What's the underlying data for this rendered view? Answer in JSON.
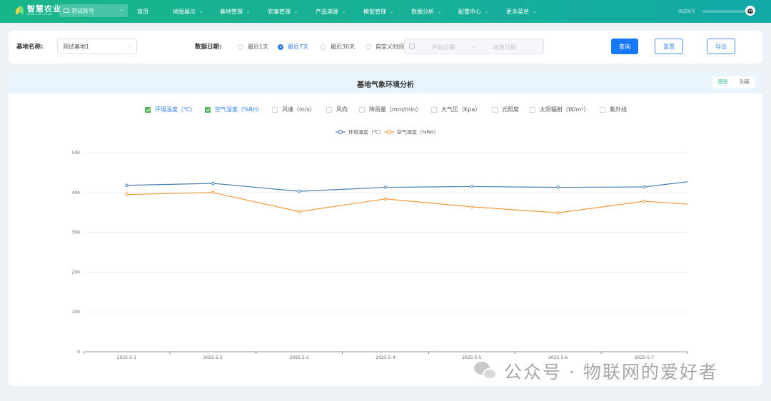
{
  "brand": {
    "name_cn": "智慧农业",
    "name_en": "SMART AGRICULTURE"
  },
  "account": {
    "label": "测试账号"
  },
  "nav": [
    "首页",
    "地图展示",
    "基地管理",
    "农事管理",
    "产品溯源",
    "模型管理",
    "数据分析",
    "配置中心",
    "更多菜单"
  ],
  "nav_has_dropdown": [
    false,
    true,
    true,
    true,
    true,
    true,
    true,
    true,
    true
  ],
  "topright": {
    "user": "测试账号"
  },
  "filter": {
    "base_label": "基地名称:",
    "base_value": "测试基地1",
    "date_label": "数据日期:",
    "ranges": [
      "最近1天",
      "最近7天",
      "最近30天",
      "自定义时间"
    ],
    "selected_range": "最近7天",
    "start_placeholder": "开始日期",
    "range_separator": "—",
    "end_placeholder": "结束日期",
    "query": "查询",
    "reset": "重置",
    "export": "导出"
  },
  "panel": {
    "title": "基地气象环境分析",
    "views": [
      "图形",
      "列表"
    ],
    "active_view": "图形",
    "metrics": [
      {
        "label": "环境温度（℃）",
        "checked": true
      },
      {
        "label": "空气湿度（%RH）",
        "checked": true
      },
      {
        "label": "风速（m/s）",
        "checked": false
      },
      {
        "label": "风向",
        "checked": false
      },
      {
        "label": "降雨量（mm/min）",
        "checked": false
      },
      {
        "label": "大气压（Kpa）",
        "checked": false
      },
      {
        "label": "光照度",
        "checked": false
      },
      {
        "label": "太阳辐射（W/m²）",
        "checked": false
      },
      {
        "label": "紫外线",
        "checked": false
      }
    ]
  },
  "colors": {
    "accent": "#19b58a",
    "primary": "#1677ff",
    "series_temp": "#4a7fb0",
    "series_hum": "#ef9a3c"
  },
  "chart_data": {
    "type": "line",
    "categories": [
      "2025-5-1",
      "2025-5-2",
      "2025-5-3",
      "2025-5-4",
      "2025-5-5",
      "2025-5-6",
      "2025-5-7"
    ],
    "ylim": [
      0,
      500
    ],
    "yticks": [
      0,
      100,
      200,
      300,
      400,
      500
    ],
    "grid": true,
    "legend": "top-center",
    "series": [
      {
        "name": "环境温度（℃）",
        "values": [
          418,
          423,
          403,
          413,
          415,
          413,
          414
        ],
        "end_value": 427
      },
      {
        "name": "空气湿度（%RH）",
        "values": [
          395,
          400,
          352,
          384,
          364,
          349,
          378
        ],
        "end_value": 371
      }
    ]
  },
  "watermark": {
    "text": "公众号 · 物联网的爱好者"
  }
}
